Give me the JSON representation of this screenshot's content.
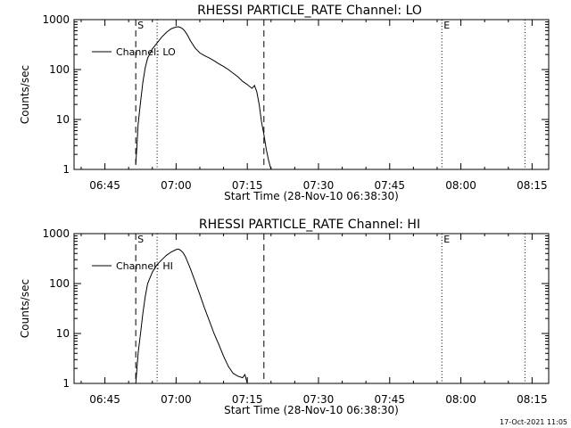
{
  "footer": {
    "timestamp": "17-Oct-2021 11:05"
  },
  "chart_data": [
    {
      "type": "line",
      "title": "RHESSI PARTICLE_RATE Channel: LO",
      "xlabel": "Start Time (28-Nov-10 06:38:30)",
      "ylabel": "Counts/sec",
      "yscale": "log",
      "xlim": [
        "06:38:30",
        "08:18:30"
      ],
      "ylim": [
        1,
        1000
      ],
      "xticks": [
        "06:45",
        "07:00",
        "07:15",
        "07:30",
        "07:45",
        "08:00",
        "08:15"
      ],
      "yticks": [
        "1",
        "10",
        "100",
        "1000"
      ],
      "grid": false,
      "legend": {
        "position": "top-left",
        "label": "Channel: LO"
      },
      "markers": [
        {
          "time": "06:51:30",
          "style": "dashed",
          "label": "S"
        },
        {
          "time": "06:56:00",
          "style": "dotted",
          "label": ""
        },
        {
          "time": "07:18:30",
          "style": "dashed",
          "label": ""
        },
        {
          "time": "07:56:00",
          "style": "dotted",
          "label": "E"
        },
        {
          "time": "08:13:30",
          "style": "dotted",
          "label": ""
        }
      ],
      "series": [
        {
          "name": "Channel: LO",
          "x": [
            "06:51:30",
            "06:51:45",
            "06:52:00",
            "06:52:30",
            "06:53:00",
            "06:53:30",
            "06:54:00",
            "06:55:00",
            "06:56:00",
            "06:57:00",
            "06:58:00",
            "06:59:00",
            "07:00:00",
            "07:00:30",
            "07:01:00",
            "07:01:30",
            "07:02:00",
            "07:02:30",
            "07:03:00",
            "07:04:00",
            "07:05:00",
            "07:06:00",
            "07:07:00",
            "07:08:00",
            "07:09:00",
            "07:10:00",
            "07:11:00",
            "07:12:00",
            "07:13:00",
            "07:14:00",
            "07:15:00",
            "07:16:00",
            "07:16:30",
            "07:17:00",
            "07:17:30",
            "07:18:00",
            "07:18:30",
            "07:19:00",
            "07:19:30",
            "07:20:00"
          ],
          "values": [
            1.3,
            3,
            8,
            22,
            55,
            110,
            170,
            260,
            340,
            450,
            560,
            660,
            710,
            720,
            690,
            640,
            560,
            470,
            380,
            270,
            215,
            190,
            170,
            150,
            130,
            115,
            100,
            85,
            72,
            58,
            50,
            42,
            48,
            36,
            20,
            9,
            5,
            2.5,
            1.5,
            1
          ]
        }
      ]
    },
    {
      "type": "line",
      "title": "RHESSI PARTICLE_RATE Channel: HI",
      "xlabel": "Start Time (28-Nov-10 06:38:30)",
      "ylabel": "Counts/sec",
      "yscale": "log",
      "xlim": [
        "06:38:30",
        "08:18:30"
      ],
      "ylim": [
        1,
        1000
      ],
      "xticks": [
        "06:45",
        "07:00",
        "07:15",
        "07:30",
        "07:45",
        "08:00",
        "08:15"
      ],
      "yticks": [
        "1",
        "10",
        "100",
        "1000"
      ],
      "grid": false,
      "legend": {
        "position": "top-left",
        "label": "Channel: HI"
      },
      "markers": [
        {
          "time": "06:51:30",
          "style": "dashed",
          "label": "S"
        },
        {
          "time": "06:56:00",
          "style": "dotted",
          "label": ""
        },
        {
          "time": "07:18:30",
          "style": "dashed",
          "label": ""
        },
        {
          "time": "07:56:00",
          "style": "dotted",
          "label": "E"
        },
        {
          "time": "08:13:30",
          "style": "dotted",
          "label": ""
        }
      ],
      "series": [
        {
          "name": "Channel: HI",
          "x": [
            "06:51:30",
            "06:51:45",
            "06:52:00",
            "06:52:30",
            "06:53:00",
            "06:53:30",
            "06:54:00",
            "06:55:00",
            "06:56:00",
            "06:57:00",
            "06:58:00",
            "06:59:00",
            "07:00:00",
            "07:00:30",
            "07:01:00",
            "07:01:30",
            "07:02:00",
            "07:03:00",
            "07:04:00",
            "07:05:00",
            "07:06:00",
            "07:07:00",
            "07:08:00",
            "07:09:00",
            "07:10:00",
            "07:11:00",
            "07:12:00",
            "07:13:00",
            "07:14:00",
            "07:14:30",
            "07:15:00"
          ],
          "values": [
            1,
            2,
            4,
            10,
            25,
            55,
            100,
            170,
            240,
            300,
            370,
            430,
            480,
            490,
            460,
            410,
            340,
            200,
            110,
            60,
            32,
            18,
            10,
            6,
            3.5,
            2.2,
            1.6,
            1.4,
            1.3,
            1.5,
            1
          ]
        }
      ]
    }
  ]
}
